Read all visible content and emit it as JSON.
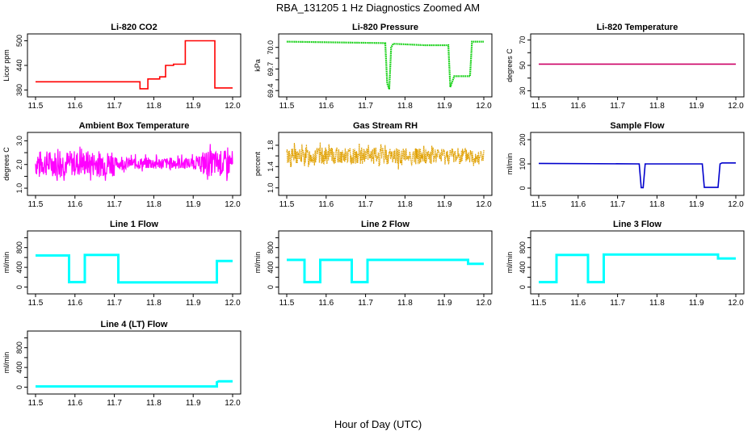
{
  "title": "RBA_131205  1 Hz Diagnostics Zoomed AM",
  "xlabel": "Hour of Day (UTC)",
  "colors": {
    "co2": "#ff0000",
    "pressure": "#00cc00",
    "temperature": "#cc0066",
    "ambient": "#ff00ff",
    "rh": "#e0a000",
    "sample": "#0000cc",
    "line": "#00ffff"
  },
  "chart_data": [
    {
      "type": "line",
      "title": "Li-820 CO2",
      "ylabel": "Licor ppm",
      "xlim": [
        11.5,
        12.0
      ],
      "ylim": [
        375,
        505
      ],
      "xticks": [
        "11.5",
        "11.6",
        "11.7",
        "11.8",
        "11.9",
        "12.0"
      ],
      "yticks": [
        380,
        440,
        500
      ],
      "color_key": "co2",
      "series": [
        {
          "x": [
            11.5,
            11.765,
            11.765,
            11.785,
            11.785,
            11.815,
            11.815,
            11.83,
            11.83,
            11.85,
            11.85,
            11.88,
            11.88,
            11.955,
            11.955,
            11.97,
            11.97,
            12.0
          ],
          "y": [
            400,
            400,
            383,
            383,
            407,
            407,
            412,
            412,
            440,
            440,
            443,
            443,
            500,
            500,
            385,
            385,
            385,
            385
          ]
        }
      ]
    },
    {
      "type": "line",
      "title": "Li-820 Pressure",
      "ylabel": "kPa",
      "xlim": [
        11.5,
        12.0
      ],
      "ylim": [
        69.38,
        70.12
      ],
      "xticks": [
        "11.5",
        "11.6",
        "11.7",
        "11.8",
        "11.9",
        "12.0"
      ],
      "yticks": [
        "69.4",
        "69.7",
        "70.0"
      ],
      "ytick_values": [
        69.4,
        69.7,
        70.0
      ],
      "extra_yticks": [
        69.55,
        69.85
      ],
      "color_key": "pressure",
      "series": [
        {
          "x": [
            11.5,
            11.75,
            11.755,
            11.76,
            11.765,
            11.77,
            11.85,
            11.91,
            11.915,
            11.925,
            11.93,
            11.965,
            11.97,
            11.98,
            12.0
          ],
          "y": [
            70.08,
            70.06,
            69.5,
            69.42,
            70.0,
            70.05,
            70.03,
            70.03,
            69.45,
            69.6,
            69.6,
            69.6,
            70.08,
            70.08,
            70.08
          ]
        }
      ]
    },
    {
      "type": "line",
      "title": "Li-820 Temperature",
      "ylabel": "degrees C",
      "xlim": [
        11.5,
        12.0
      ],
      "ylim": [
        29,
        71
      ],
      "xticks": [
        "11.5",
        "11.6",
        "11.7",
        "11.8",
        "11.9",
        "12.0"
      ],
      "yticks": [
        30,
        50,
        70
      ],
      "extra_yticks": [
        40,
        60
      ],
      "color_key": "temperature",
      "series": [
        {
          "x": [
            11.5,
            12.0
          ],
          "y": [
            51,
            51
          ]
        }
      ]
    },
    {
      "type": "line",
      "title": "Ambient Box Temperature",
      "ylabel": "degrees C",
      "xlim": [
        11.5,
        12.0
      ],
      "ylim": [
        0.9,
        3.15
      ],
      "xticks": [
        "11.5",
        "11.6",
        "11.7",
        "11.8",
        "11.9",
        "12.0"
      ],
      "yticks": [
        "1.0",
        "2.0",
        "3.0"
      ],
      "ytick_values": [
        1.0,
        2.0,
        3.0
      ],
      "extra_yticks": [
        1.5,
        2.5
      ],
      "color_key": "ambient",
      "noise": {
        "base": 2.05,
        "amp": 0.55,
        "seed": 7
      }
    },
    {
      "type": "line",
      "title": "Gas Stream RH",
      "ylabel": "percent",
      "xlim": [
        11.5,
        12.0
      ],
      "ylim": [
        0.95,
        1.95
      ],
      "xticks": [
        "11.5",
        "11.6",
        "11.7",
        "11.8",
        "11.9",
        "12.0"
      ],
      "yticks": [
        "1.0",
        "1.4",
        "1.8"
      ],
      "ytick_values": [
        1.0,
        1.4,
        1.8
      ],
      "extra_yticks": [
        1.2,
        1.6
      ],
      "color_key": "rh",
      "noise": {
        "base": 1.6,
        "amp": 0.16,
        "seed": 13
      }
    },
    {
      "type": "line",
      "title": "Sample Flow",
      "ylabel": "ml/min",
      "xlim": [
        11.5,
        12.0
      ],
      "ylim": [
        -10,
        210
      ],
      "xticks": [
        "11.5",
        "11.6",
        "11.7",
        "11.8",
        "11.9",
        "12.0"
      ],
      "yticks": [
        0,
        100,
        200
      ],
      "color_key": "sample",
      "series": [
        {
          "x": [
            11.5,
            11.755,
            11.76,
            11.765,
            11.77,
            11.915,
            11.92,
            11.955,
            11.96,
            11.965,
            12.0
          ],
          "y": [
            102,
            100,
            2,
            2,
            100,
            100,
            3,
            3,
            100,
            104,
            104
          ]
        }
      ]
    },
    {
      "type": "line",
      "title": "Line 1 Flow",
      "ylabel": "ml/min",
      "xlim": [
        11.5,
        12.0
      ],
      "ylim": [
        -40,
        1040
      ],
      "xticks": [
        "11.5",
        "11.6",
        "11.7",
        "11.8",
        "11.9",
        "12.0"
      ],
      "yticks": [
        0,
        400,
        800
      ],
      "extra_yticks": [
        200,
        600,
        1000
      ],
      "color_key": "line",
      "series": [
        {
          "x": [
            11.5,
            11.585,
            11.585,
            11.625,
            11.625,
            11.71,
            11.71,
            11.96,
            11.96,
            12.0
          ],
          "y": [
            640,
            640,
            100,
            100,
            650,
            650,
            95,
            95,
            530,
            530
          ]
        }
      ]
    },
    {
      "type": "line",
      "title": "Line 2 Flow",
      "ylabel": "ml/min",
      "xlim": [
        11.5,
        12.0
      ],
      "ylim": [
        -40,
        1040
      ],
      "xticks": [
        "11.5",
        "11.6",
        "11.7",
        "11.8",
        "11.9",
        "12.0"
      ],
      "yticks": [
        0,
        400,
        800
      ],
      "extra_yticks": [
        200,
        600,
        1000
      ],
      "color_key": "line",
      "series": [
        {
          "x": [
            11.5,
            11.545,
            11.545,
            11.585,
            11.585,
            11.665,
            11.665,
            11.705,
            11.705,
            11.96,
            11.96,
            12.0
          ],
          "y": [
            550,
            550,
            100,
            100,
            550,
            550,
            100,
            100,
            550,
            550,
            470,
            470
          ]
        }
      ]
    },
    {
      "type": "line",
      "title": "Line 3 Flow",
      "ylabel": "ml/min",
      "xlim": [
        11.5,
        12.0
      ],
      "ylim": [
        -40,
        1040
      ],
      "xticks": [
        "11.5",
        "11.6",
        "11.7",
        "11.8",
        "11.9",
        "12.0"
      ],
      "yticks": [
        0,
        400,
        800
      ],
      "extra_yticks": [
        200,
        600,
        1000
      ],
      "color_key": "line",
      "series": [
        {
          "x": [
            11.5,
            11.545,
            11.545,
            11.625,
            11.625,
            11.665,
            11.665,
            11.955,
            11.955,
            12.0
          ],
          "y": [
            100,
            100,
            650,
            650,
            100,
            100,
            660,
            660,
            580,
            580
          ]
        }
      ]
    },
    {
      "type": "line",
      "title": "Line 4 (LT) Flow",
      "ylabel": "ml/min",
      "xlim": [
        11.5,
        12.0
      ],
      "ylim": [
        -40,
        1040
      ],
      "xticks": [
        "11.5",
        "11.6",
        "11.7",
        "11.8",
        "11.9",
        "12.0"
      ],
      "yticks": [
        0,
        400,
        800
      ],
      "extra_yticks": [
        200,
        600,
        1000
      ],
      "color_key": "line",
      "series": [
        {
          "x": [
            11.5,
            11.96,
            11.96,
            11.965,
            12.0
          ],
          "y": [
            15,
            15,
            100,
            120,
            120
          ]
        }
      ]
    }
  ]
}
